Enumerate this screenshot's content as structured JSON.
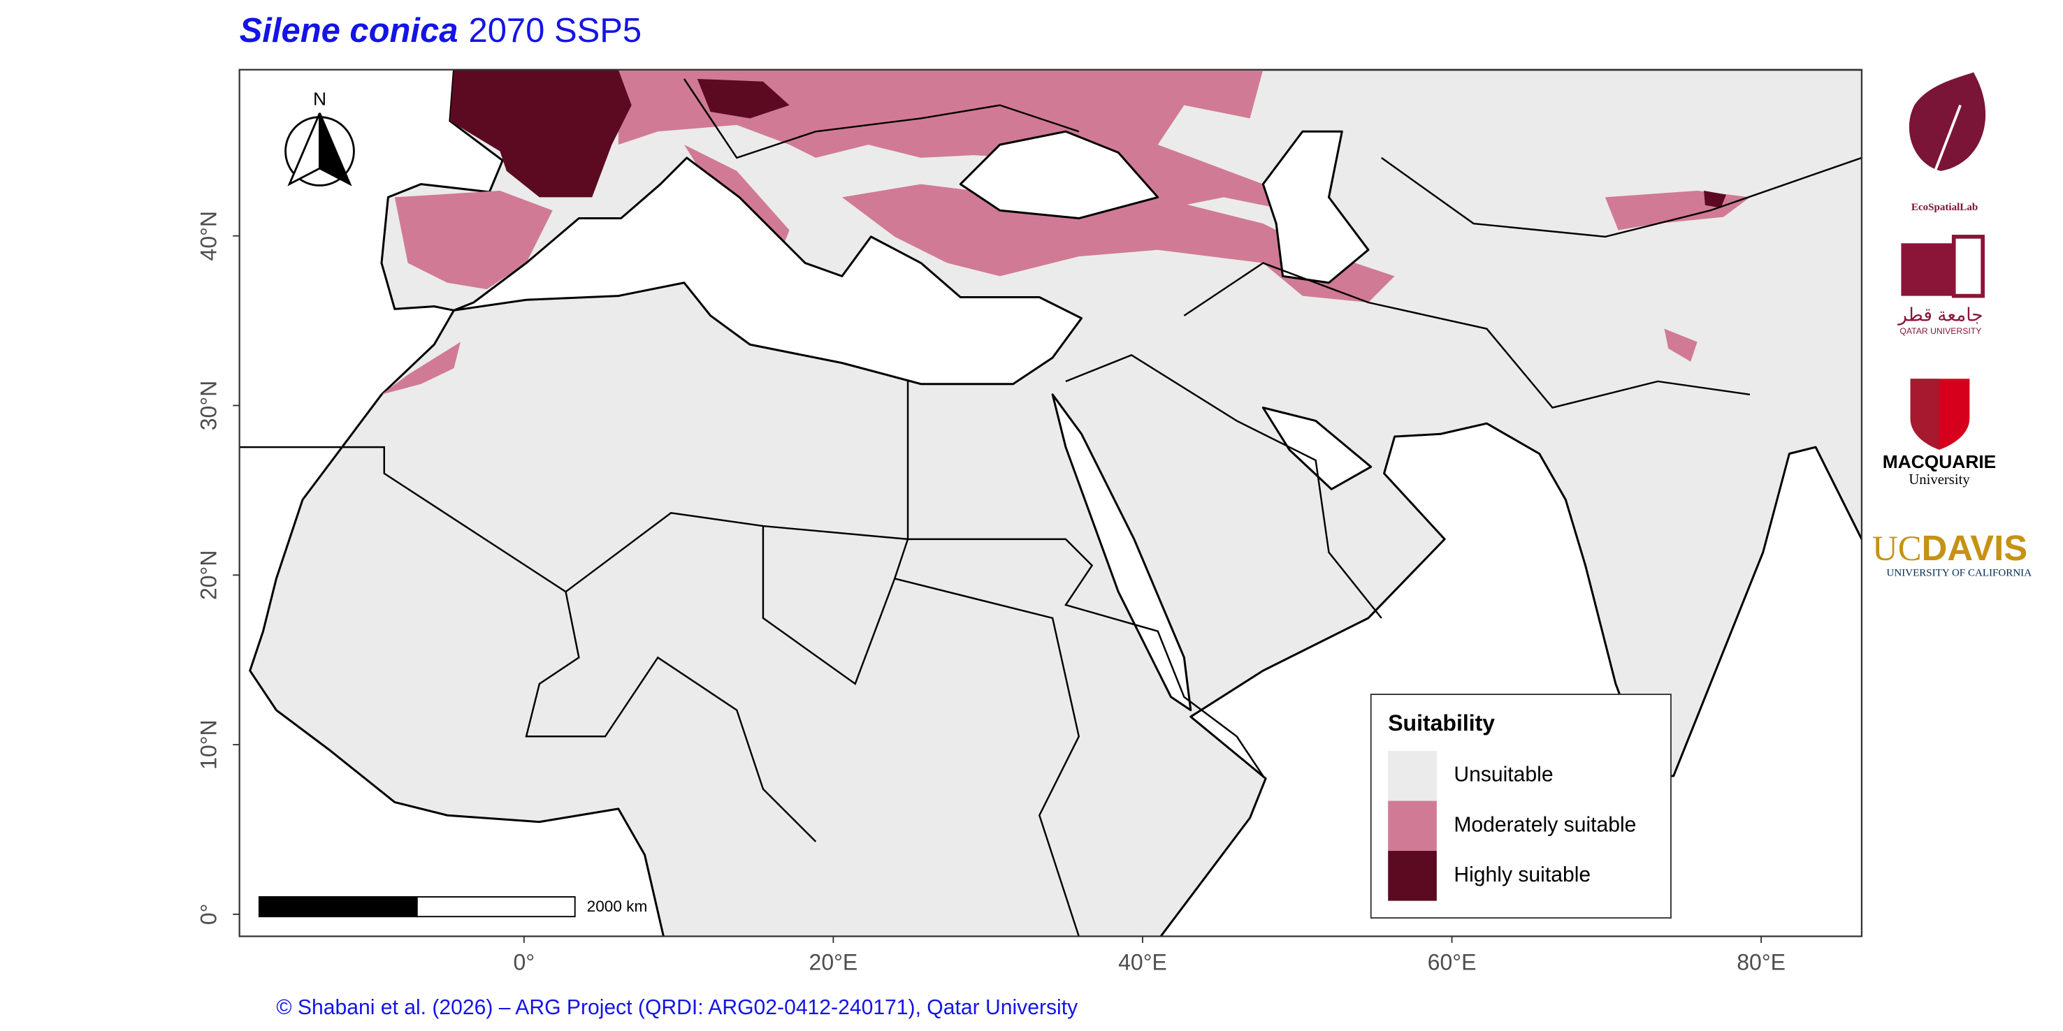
{
  "title": {
    "species": "Silene conica",
    "scenario": "2070 SSP5"
  },
  "map": {
    "xlim": [
      -18.4,
      86.5
    ],
    "ylim": [
      -1.3,
      49.8
    ],
    "xticks": [
      {
        "value": 0,
        "label": "0°"
      },
      {
        "value": 20,
        "label": "20°E"
      },
      {
        "value": 40,
        "label": "40°E"
      },
      {
        "value": 60,
        "label": "60°E"
      },
      {
        "value": 80,
        "label": "80°E"
      }
    ],
    "yticks": [
      {
        "value": 0,
        "label": "0°"
      },
      {
        "value": 10,
        "label": "10°N"
      },
      {
        "value": 20,
        "label": "20°N"
      },
      {
        "value": 30,
        "label": "30°N"
      },
      {
        "value": 40,
        "label": "40°N"
      }
    ]
  },
  "legend": {
    "title": "Suitability",
    "items": [
      {
        "label": "Unsuitable",
        "color": "#ebebeb"
      },
      {
        "label": "Moderately suitable",
        "color": "#d17a96"
      },
      {
        "label": "Highly suitable",
        "color": "#5c0a22"
      }
    ]
  },
  "north_arrow": {
    "label": "N"
  },
  "scale_bar": {
    "label": "2000 km"
  },
  "credit": "© Shabani et al. (2026) – ARG Project (QRDI: ARG02-0412-240171), Qatar University",
  "logos": {
    "ecospatial": "EcoSpatialLab",
    "qatar_arabic": "جامعة قطر",
    "qatar": "QATAR UNIVERSITY",
    "macquarie": "MACQUARIE",
    "macquarie_sub": "University",
    "uc": "UC",
    "davis": "DAVIS",
    "uc_sub": "UNIVERSITY OF CALIFORNIA"
  }
}
